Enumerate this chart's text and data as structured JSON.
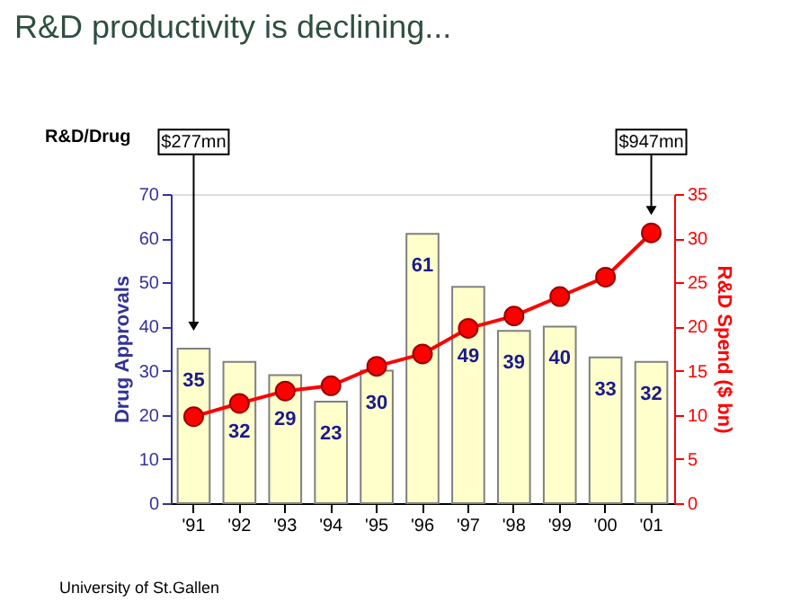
{
  "chart_data": {
    "type": "bar",
    "title": "R&D productivity is declining...",
    "categories": [
      "'91",
      "'92",
      "'93",
      "'94",
      "'95",
      "'96",
      "'97",
      "'98",
      "'99",
      "'00",
      "'01"
    ],
    "ylabel": "Drug Approvals",
    "y2label": "R&D Spend ($ bn)",
    "ylim": [
      0,
      70
    ],
    "yticks": [
      0,
      10,
      20,
      30,
      40,
      50,
      60,
      70
    ],
    "y2lim": [
      0,
      35
    ],
    "y2ticks": [
      0,
      5,
      10,
      15,
      20,
      25,
      30,
      35
    ],
    "series": [
      {
        "type": "bar",
        "color": "#ffffcc",
        "values": [
          35,
          32,
          29,
          23,
          30,
          61,
          49,
          39,
          40,
          33,
          32
        ],
        "value_labels": [
          "35",
          "32",
          "29",
          "23",
          "30",
          "61",
          "49",
          "39",
          "40",
          "33",
          "32"
        ]
      },
      {
        "type": "line",
        "axis": "y2",
        "color": "#ff0000",
        "marker": "circle",
        "line_style": "solid",
        "values": [
          9.8,
          11.3,
          12.7,
          13.3,
          15.5,
          16.9,
          19.8,
          21.2,
          23.4,
          25.6,
          30.6
        ]
      }
    ],
    "annotations": [
      "R&D/Drug",
      "$277mn",
      "$947mn",
      "University of St.Gallen"
    ]
  }
}
